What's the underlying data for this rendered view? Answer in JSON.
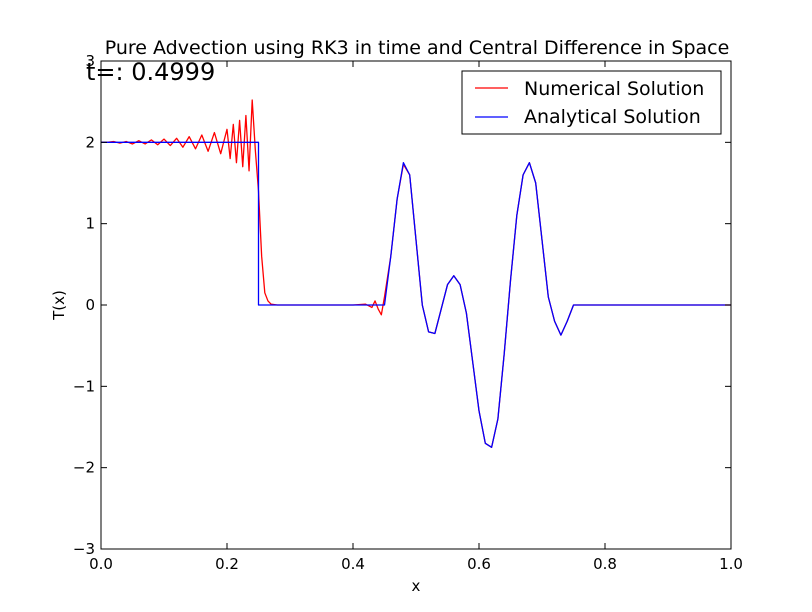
{
  "chart_data": {
    "type": "line",
    "title": "Pure Advection using RK3 in time and Central Difference in Space",
    "annotation": "t=: 0.4999",
    "xlabel": "x",
    "ylabel": "T(x)",
    "xlim": [
      0.0,
      1.0
    ],
    "ylim": [
      -3,
      3
    ],
    "x_ticks": [
      0.0,
      0.2,
      0.4,
      0.6,
      0.8,
      1.0
    ],
    "x_tick_labels": [
      "0.0",
      "0.2",
      "0.4",
      "0.6",
      "0.8",
      "1.0"
    ],
    "y_ticks": [
      -3,
      -2,
      -1,
      0,
      1,
      2,
      3
    ],
    "y_tick_labels": [
      "−3",
      "−2",
      "−1",
      "0",
      "1",
      "2",
      "3"
    ],
    "grid": false,
    "legend_position": "top-right",
    "series": [
      {
        "name": "Numerical Solution",
        "color": "#ff0000",
        "x": [
          0.0,
          0.01,
          0.02,
          0.03,
          0.04,
          0.05,
          0.06,
          0.07,
          0.08,
          0.09,
          0.1,
          0.11,
          0.12,
          0.13,
          0.14,
          0.15,
          0.16,
          0.17,
          0.18,
          0.19,
          0.2,
          0.205,
          0.21,
          0.215,
          0.22,
          0.225,
          0.23,
          0.235,
          0.24,
          0.245,
          0.25,
          0.255,
          0.26,
          0.265,
          0.27,
          0.28,
          0.3,
          0.35,
          0.4,
          0.42,
          0.43,
          0.435,
          0.44,
          0.445,
          0.45,
          0.46,
          0.47,
          0.48,
          0.49,
          0.5,
          0.51,
          0.52,
          0.53,
          0.54,
          0.55,
          0.56,
          0.57,
          0.58,
          0.59,
          0.6,
          0.61,
          0.62,
          0.63,
          0.64,
          0.65,
          0.66,
          0.67,
          0.68,
          0.69,
          0.7,
          0.71,
          0.72,
          0.73,
          0.74,
          0.75,
          0.8,
          0.9,
          1.0
        ],
        "y": [
          2.0,
          2.0,
          2.01,
          1.99,
          2.01,
          1.98,
          2.02,
          1.98,
          2.03,
          1.97,
          2.04,
          1.96,
          2.05,
          1.94,
          2.07,
          1.92,
          2.09,
          1.89,
          2.12,
          1.86,
          2.16,
          1.8,
          2.22,
          1.75,
          2.27,
          1.7,
          2.33,
          1.65,
          2.52,
          1.9,
          1.4,
          0.6,
          0.15,
          0.05,
          0.01,
          0.0,
          0.0,
          0.0,
          0.0,
          0.01,
          -0.03,
          0.05,
          -0.05,
          -0.12,
          0.1,
          0.6,
          1.3,
          1.73,
          1.6,
          0.8,
          0.0,
          -0.33,
          -0.35,
          -0.05,
          0.25,
          0.36,
          0.25,
          -0.1,
          -0.7,
          -1.3,
          -1.7,
          -1.75,
          -1.4,
          -0.6,
          0.3,
          1.1,
          1.6,
          1.75,
          1.5,
          0.8,
          0.1,
          -0.2,
          -0.37,
          -0.2,
          0.0,
          0.0,
          0.0,
          0.0
        ]
      },
      {
        "name": "Analytical Solution",
        "color": "#0000ff",
        "x": [
          0.0,
          0.25,
          0.25,
          0.45,
          0.46,
          0.47,
          0.48,
          0.49,
          0.5,
          0.51,
          0.52,
          0.53,
          0.54,
          0.55,
          0.56,
          0.57,
          0.58,
          0.59,
          0.6,
          0.61,
          0.62,
          0.63,
          0.64,
          0.65,
          0.66,
          0.67,
          0.68,
          0.69,
          0.7,
          0.71,
          0.72,
          0.73,
          0.74,
          0.75,
          0.8,
          0.9,
          1.0
        ],
        "y": [
          2.0,
          2.0,
          0.0,
          0.0,
          0.6,
          1.3,
          1.75,
          1.6,
          0.8,
          0.0,
          -0.33,
          -0.35,
          -0.05,
          0.25,
          0.36,
          0.25,
          -0.1,
          -0.7,
          -1.3,
          -1.7,
          -1.75,
          -1.4,
          -0.6,
          0.3,
          1.1,
          1.6,
          1.75,
          1.5,
          0.8,
          0.1,
          -0.2,
          -0.37,
          -0.2,
          0.0,
          0.0,
          0.0,
          0.0
        ]
      }
    ]
  }
}
